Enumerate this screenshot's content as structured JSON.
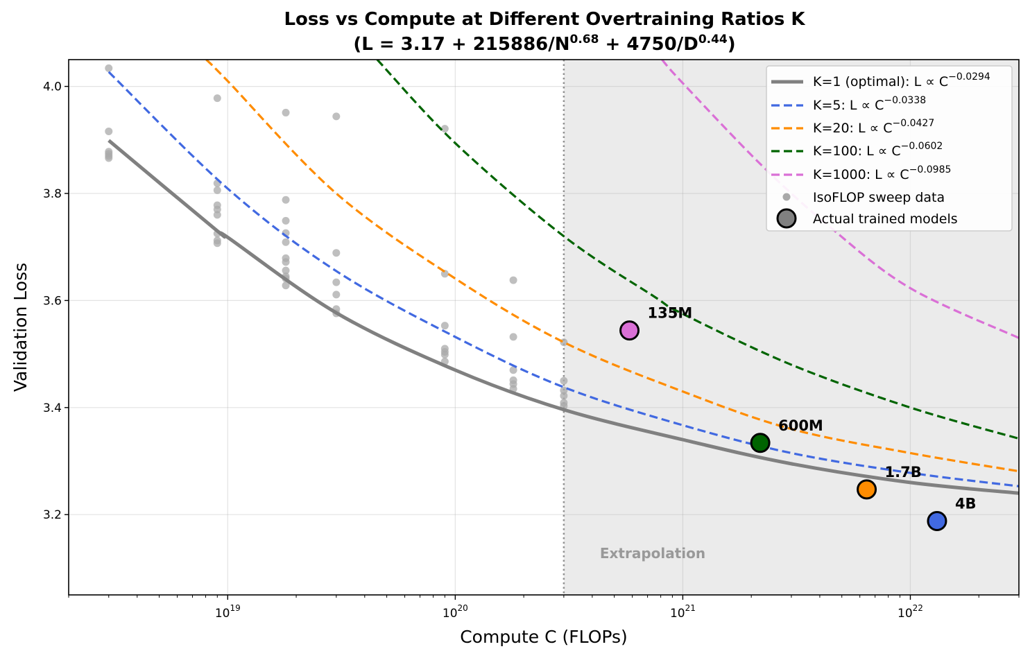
{
  "chart_data": {
    "type": "line",
    "title": {
      "line1": "Loss vs Compute at Different Overtraining Ratios K",
      "line2_parts": [
        "(L = 3.17 + 215886/N",
        "0.68",
        " + 4750/D",
        "0.44",
        ")"
      ]
    },
    "xlabel": "Compute C (FLOPs)",
    "ylabel": "Validation Loss",
    "xscale": "log",
    "xlim": [
      2e+18,
      3e+22
    ],
    "ylim": [
      3.05,
      4.05
    ],
    "grid": true,
    "x_ticks": [
      {
        "value": 1e+19,
        "base": "10",
        "exp": "19"
      },
      {
        "value": 1e+20,
        "base": "10",
        "exp": "20"
      },
      {
        "value": 1e+21,
        "base": "10",
        "exp": "21"
      },
      {
        "value": 1e+22,
        "base": "10",
        "exp": "22"
      }
    ],
    "y_ticks": [
      "3.2",
      "3.4",
      "3.6",
      "3.8",
      "4.0"
    ],
    "extrapolation": {
      "start": 3e+20,
      "label": "Extrapolation",
      "shade_color": "#ebebeb"
    },
    "legend_position": "top-right",
    "series": [
      {
        "name": "K=1 (optimal): L ∝ C",
        "exponent": "−0.0294",
        "color": "#808080",
        "style": "solid",
        "points": [
          [
            3e+18,
            3.899
          ],
          [
            9e+18,
            3.73
          ],
          [
            1e+19,
            3.718
          ],
          [
            3e+19,
            3.577
          ],
          [
            1e+20,
            3.47
          ],
          [
            3e+20,
            3.396
          ],
          [
            1e+21,
            3.34
          ],
          [
            3e+21,
            3.295
          ],
          [
            1e+22,
            3.26
          ],
          [
            3e+22,
            3.24
          ]
        ]
      },
      {
        "name": "K=5: L ∝ C",
        "exponent": "−0.0338",
        "color": "#4169e1",
        "style": "dashed",
        "points": [
          [
            3e+18,
            4.027
          ],
          [
            1e+19,
            3.809
          ],
          [
            3e+19,
            3.655
          ],
          [
            1e+20,
            3.532
          ],
          [
            3e+20,
            3.438
          ],
          [
            1e+21,
            3.367
          ],
          [
            3e+21,
            3.315
          ],
          [
            1e+22,
            3.278
          ],
          [
            3e+22,
            3.253
          ]
        ]
      },
      {
        "name": "K=20: L ∝ C",
        "exponent": "−0.0427",
        "color": "#ff8c00",
        "style": "dashed",
        "points": [
          [
            8.05e+18,
            4.05
          ],
          [
            1e+19,
            4.01
          ],
          [
            3e+19,
            3.8
          ],
          [
            1e+20,
            3.641
          ],
          [
            3e+20,
            3.522
          ],
          [
            1e+21,
            3.43
          ],
          [
            3e+21,
            3.36
          ],
          [
            1e+22,
            3.315
          ],
          [
            3e+22,
            3.281
          ]
        ]
      },
      {
        "name": "K=100: L ∝ C",
        "exponent": "−0.0602",
        "color": "#006400",
        "style": "dashed",
        "points": [
          [
            4.54e+19,
            4.05
          ],
          [
            1e+20,
            3.894
          ],
          [
            3e+20,
            3.72
          ],
          [
            7.45e+20,
            3.608
          ],
          [
            1e+21,
            3.575
          ],
          [
            3e+21,
            3.48
          ],
          [
            1e+22,
            3.4
          ],
          [
            3e+22,
            3.342
          ]
        ]
      },
      {
        "name": "K=1000: L ∝ C",
        "exponent": "−0.0985",
        "color": "#da70d6",
        "style": "dashed",
        "points": [
          [
            8.1e+20,
            4.05
          ],
          [
            1e+21,
            4.006
          ],
          [
            2.24e+21,
            3.851
          ],
          [
            4.5e+21,
            3.735
          ],
          [
            1e+22,
            3.623
          ],
          [
            3e+22,
            3.53
          ]
        ]
      }
    ],
    "isoflop": {
      "name": "IsoFLOP sweep data",
      "color": "#a9a9a9",
      "points": [
        [
          3e+18,
          4.034
        ],
        [
          3e+18,
          3.916
        ],
        [
          3e+18,
          3.878
        ],
        [
          3e+18,
          3.874
        ],
        [
          3e+18,
          3.87
        ],
        [
          3e+18,
          3.866
        ],
        [
          9e+18,
          3.978
        ],
        [
          9e+18,
          3.819
        ],
        [
          9e+18,
          3.806
        ],
        [
          9e+18,
          3.778
        ],
        [
          9e+18,
          3.77
        ],
        [
          9e+18,
          3.76
        ],
        [
          9e+18,
          3.725
        ],
        [
          9e+18,
          3.712
        ],
        [
          9e+18,
          3.707
        ],
        [
          1.8e+19,
          3.951
        ],
        [
          1.8e+19,
          3.788
        ],
        [
          1.8e+19,
          3.749
        ],
        [
          1.8e+19,
          3.726
        ],
        [
          1.8e+19,
          3.709
        ],
        [
          1.8e+19,
          3.679
        ],
        [
          1.8e+19,
          3.672
        ],
        [
          1.8e+19,
          3.656
        ],
        [
          1.8e+19,
          3.645
        ],
        [
          1.8e+19,
          3.641
        ],
        [
          1.8e+19,
          3.628
        ],
        [
          3e+19,
          3.944
        ],
        [
          3e+19,
          3.689
        ],
        [
          3e+19,
          3.634
        ],
        [
          3e+19,
          3.611
        ],
        [
          3e+19,
          3.584
        ],
        [
          3e+19,
          3.576
        ],
        [
          9e+19,
          3.921
        ],
        [
          9e+19,
          3.65
        ],
        [
          9e+19,
          3.553
        ],
        [
          9e+19,
          3.51
        ],
        [
          9e+19,
          3.504
        ],
        [
          9e+19,
          3.499
        ],
        [
          9e+19,
          3.486
        ],
        [
          1.8e+20,
          3.638
        ],
        [
          1.8e+20,
          3.532
        ],
        [
          1.8e+20,
          3.47
        ],
        [
          1.8e+20,
          3.451
        ],
        [
          1.8e+20,
          3.444
        ],
        [
          1.8e+20,
          3.435
        ],
        [
          3e+20,
          3.522
        ],
        [
          3e+20,
          3.45
        ],
        [
          3e+20,
          3.432
        ],
        [
          3e+20,
          3.422
        ],
        [
          3e+20,
          3.409
        ],
        [
          3e+20,
          3.403
        ]
      ]
    },
    "models": {
      "name": "Actual trained models",
      "legend_color": "#808080",
      "points": [
        {
          "label": "135M",
          "x": 5.83e+20,
          "y": 3.544,
          "color": "#da70d6"
        },
        {
          "label": "600M",
          "x": 2.19e+21,
          "y": 3.334,
          "color": "#006400"
        },
        {
          "label": "1.7B",
          "x": 6.43e+21,
          "y": 3.247,
          "color": "#ff8c00"
        },
        {
          "label": "4B",
          "x": 1.31e+22,
          "y": 3.188,
          "color": "#4169e1"
        }
      ]
    }
  }
}
